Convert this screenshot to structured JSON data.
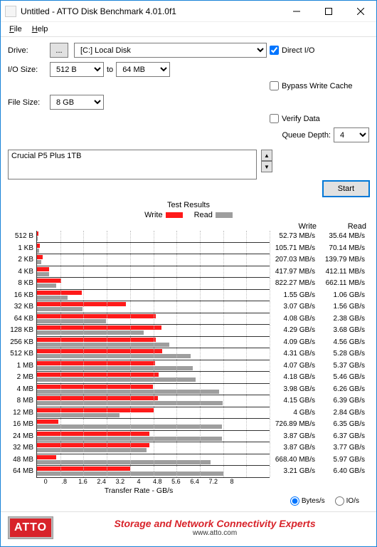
{
  "window": {
    "title": "Untitled - ATTO Disk Benchmark 4.01.0f1"
  },
  "menu": {
    "file": "File",
    "help": "Help"
  },
  "form": {
    "drive_label": "Drive:",
    "drive_btn": "...",
    "drive_value": "[C:] Local Disk",
    "iosize_label": "I/O Size:",
    "iosize_from": "512 B",
    "iosize_to_label": "to",
    "iosize_to": "64 MB",
    "filesize_label": "File Size:",
    "filesize": "8 GB",
    "direct_io": "Direct I/O",
    "direct_io_checked": true,
    "bypass": "Bypass Write Cache",
    "bypass_checked": false,
    "verify": "Verify Data",
    "verify_checked": false,
    "queue_label": "Queue Depth:",
    "queue_value": "4"
  },
  "description": "Crucial P5 Plus 1TB",
  "start": "Start",
  "chart": {
    "title": "Test Results",
    "legend_write": "Write",
    "legend_read": "Read",
    "write_color": "#ff1a1a",
    "read_color": "#9e9e9e",
    "hdr_write": "Write",
    "hdr_read": "Read",
    "xlabel": "Transfer Rate - GB/s",
    "xmax": 8,
    "xticks": [
      "0",
      ".8",
      "1.6",
      "2.4",
      "3.2",
      "4",
      "4.8",
      "5.6",
      "6.4",
      "7.2",
      "8"
    ],
    "rows": [
      {
        "label": "512 B",
        "w": 0.05273,
        "r": 0.03564,
        "wt": "52.73 MB/s",
        "rt": "35.64 MB/s"
      },
      {
        "label": "1 KB",
        "w": 0.10571,
        "r": 0.07014,
        "wt": "105.71 MB/s",
        "rt": "70.14 MB/s"
      },
      {
        "label": "2 KB",
        "w": 0.20703,
        "r": 0.13979,
        "wt": "207.03 MB/s",
        "rt": "139.79 MB/s"
      },
      {
        "label": "4 KB",
        "w": 0.41797,
        "r": 0.41211,
        "wt": "417.97 MB/s",
        "rt": "412.11 MB/s"
      },
      {
        "label": "8 KB",
        "w": 0.82227,
        "r": 0.66211,
        "wt": "822.27 MB/s",
        "rt": "662.11 MB/s"
      },
      {
        "label": "16 KB",
        "w": 1.55,
        "r": 1.06,
        "wt": "1.55 GB/s",
        "rt": "1.06 GB/s"
      },
      {
        "label": "32 KB",
        "w": 3.07,
        "r": 1.56,
        "wt": "3.07 GB/s",
        "rt": "1.56 GB/s"
      },
      {
        "label": "64 KB",
        "w": 4.08,
        "r": 2.38,
        "wt": "4.08 GB/s",
        "rt": "2.38 GB/s"
      },
      {
        "label": "128 KB",
        "w": 4.29,
        "r": 3.68,
        "wt": "4.29 GB/s",
        "rt": "3.68 GB/s"
      },
      {
        "label": "256 KB",
        "w": 4.09,
        "r": 4.56,
        "wt": "4.09 GB/s",
        "rt": "4.56 GB/s"
      },
      {
        "label": "512 KB",
        "w": 4.31,
        "r": 5.28,
        "wt": "4.31 GB/s",
        "rt": "5.28 GB/s"
      },
      {
        "label": "1 MB",
        "w": 4.07,
        "r": 5.37,
        "wt": "4.07 GB/s",
        "rt": "5.37 GB/s"
      },
      {
        "label": "2 MB",
        "w": 4.18,
        "r": 5.46,
        "wt": "4.18 GB/s",
        "rt": "5.46 GB/s"
      },
      {
        "label": "4 MB",
        "w": 3.98,
        "r": 6.26,
        "wt": "3.98 GB/s",
        "rt": "6.26 GB/s"
      },
      {
        "label": "8 MB",
        "w": 4.15,
        "r": 6.39,
        "wt": "4.15 GB/s",
        "rt": "6.39 GB/s"
      },
      {
        "label": "12 MB",
        "w": 4.0,
        "r": 2.84,
        "wt": "4 GB/s",
        "rt": "2.84 GB/s"
      },
      {
        "label": "16 MB",
        "w": 0.72689,
        "r": 6.35,
        "wt": "726.89 MB/s",
        "rt": "6.35 GB/s"
      },
      {
        "label": "24 MB",
        "w": 3.87,
        "r": 6.37,
        "wt": "3.87 GB/s",
        "rt": "6.37 GB/s"
      },
      {
        "label": "32 MB",
        "w": 3.87,
        "r": 3.77,
        "wt": "3.87 GB/s",
        "rt": "3.77 GB/s"
      },
      {
        "label": "48 MB",
        "w": 0.6684,
        "r": 5.97,
        "wt": "668.40 MB/s",
        "rt": "5.97 GB/s"
      },
      {
        "label": "64 MB",
        "w": 3.21,
        "r": 6.4,
        "wt": "3.21 GB/s",
        "rt": "6.40 GB/s"
      }
    ]
  },
  "units": {
    "bytes": "Bytes/s",
    "io": "IO/s",
    "selected": "bytes"
  },
  "footer": {
    "logo": "ATTO",
    "tag": "Storage and Network Connectivity Experts",
    "url": "www.atto.com"
  }
}
